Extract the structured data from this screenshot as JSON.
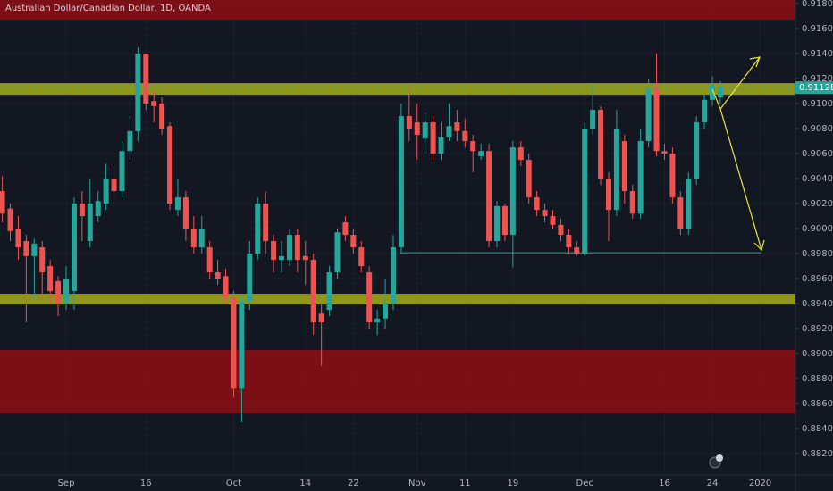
{
  "chart_data": {
    "type": "candlestick",
    "title": "Australian Dollar/Canadian Dollar, 1D, OANDA",
    "categories": [
      null,
      null,
      null,
      null,
      null,
      null,
      null,
      null,
      "Sep",
      null,
      null,
      null,
      null,
      null,
      null,
      null,
      null,
      null,
      "16",
      null,
      null,
      null,
      null,
      null,
      null,
      null,
      null,
      null,
      null,
      "Oct",
      null,
      null,
      null,
      null,
      null,
      null,
      null,
      null,
      "14",
      null,
      null,
      null,
      null,
      null,
      "22",
      null,
      null,
      null,
      null,
      null,
      null,
      null,
      "Nov",
      null,
      null,
      null,
      null,
      null,
      "11",
      null,
      null,
      null,
      null,
      null,
      "19",
      null,
      null,
      null,
      null,
      null,
      null,
      null,
      null,
      "Dec",
      null,
      null,
      null,
      null,
      null,
      null,
      null,
      null,
      null,
      "16",
      null,
      null,
      null,
      null,
      null,
      "24",
      null,
      null,
      null,
      null,
      null,
      "2020",
      null,
      null,
      null,
      null
    ],
    "open": [
      0.903,
      0.9016,
      0.9,
      0.899,
      0.8978,
      0.8985,
      0.897,
      0.8958,
      0.894,
      0.895,
      0.902,
      0.899,
      0.901,
      0.902,
      0.904,
      0.903,
      0.9062,
      0.9078,
      0.914,
      0.9102,
      0.91,
      0.9082,
      0.9015,
      0.9025,
      0.9,
      0.8985,
      0.8985,
      0.8965,
      0.8962,
      0.8945,
      0.8872,
      0.8942,
      0.898,
      0.902,
      0.899,
      0.8975,
      0.8975,
      0.8995,
      0.8978,
      0.8975,
      0.8932,
      0.8935,
      0.8965,
      0.9005,
      0.8995,
      0.8985,
      0.8965,
      0.8925,
      0.8928,
      0.894,
      0.8985,
      0.909,
      0.9085,
      0.9072,
      0.9085,
      0.906,
      0.9073,
      0.9085,
      0.9078,
      0.907,
      0.9058,
      0.9062,
      0.899,
      0.9018,
      0.8995,
      0.9065,
      0.9055,
      0.9025,
      0.9015,
      0.901,
      0.9003,
      0.8995,
      0.8985,
      0.898,
      0.908,
      0.9095,
      0.904,
      0.9015,
      0.907,
      0.903,
      0.9012,
      0.907,
      0.9112,
      0.9062,
      0.906,
      0.9025,
      0.9,
      0.904,
      0.9085,
      0.9103,
      0.9105,
      null,
      null,
      null,
      null,
      null,
      null,
      null,
      null,
      null
    ],
    "high": [
      0.9042,
      0.902,
      0.901,
      0.8995,
      0.8992,
      0.899,
      0.8975,
      0.8962,
      0.897,
      0.9025,
      0.903,
      0.904,
      0.903,
      0.9052,
      0.905,
      0.907,
      0.909,
      0.9145,
      0.914,
      0.9112,
      0.9105,
      0.9085,
      0.904,
      0.903,
      0.901,
      0.901,
      0.899,
      0.8975,
      0.8968,
      0.895,
      0.8946,
      0.899,
      0.9025,
      0.903,
      0.8995,
      0.899,
      0.9,
      0.9,
      0.899,
      0.898,
      0.894,
      0.897,
      0.9,
      0.901,
      0.9,
      0.899,
      0.897,
      0.8935,
      0.896,
      0.8995,
      0.91,
      0.9115,
      0.91,
      0.9092,
      0.909,
      0.9085,
      0.91,
      0.9095,
      0.9088,
      0.9075,
      0.9068,
      0.9068,
      0.9022,
      0.902,
      0.907,
      0.907,
      0.906,
      0.903,
      0.902,
      0.9015,
      0.9008,
      0.9,
      0.899,
      0.9085,
      0.9115,
      0.9098,
      0.9045,
      0.9095,
      0.9075,
      0.9035,
      0.908,
      0.912,
      0.914,
      0.9068,
      0.9065,
      0.903,
      0.9045,
      0.909,
      0.9108,
      0.9122,
      0.9118,
      null,
      null,
      null,
      null,
      null,
      null,
      null,
      null,
      null
    ],
    "low": [
      0.9005,
      0.899,
      0.8975,
      0.8925,
      0.8945,
      0.8945,
      0.894,
      0.893,
      0.8935,
      0.8935,
      0.899,
      0.8985,
      0.9005,
      0.9015,
      0.902,
      0.9025,
      0.9055,
      0.907,
      0.9095,
      0.9085,
      0.9075,
      0.9015,
      0.901,
      0.899,
      0.898,
      0.898,
      0.896,
      0.8955,
      0.894,
      0.8865,
      0.8845,
      0.8935,
      0.8975,
      0.898,
      0.8965,
      0.8965,
      0.897,
      0.8965,
      0.8955,
      0.8915,
      0.889,
      0.893,
      0.896,
      0.899,
      0.898,
      0.8965,
      0.892,
      0.8915,
      0.892,
      0.8935,
      0.898,
      0.907,
      0.9055,
      0.906,
      0.9055,
      0.9055,
      0.907,
      0.907,
      0.9065,
      0.9045,
      0.9055,
      0.8985,
      0.8985,
      0.899,
      0.8969,
      0.905,
      0.902,
      0.901,
      0.9005,
      0.9,
      0.899,
      0.898,
      0.8978,
      0.8978,
      0.9075,
      0.9035,
      0.899,
      0.901,
      0.902,
      0.9008,
      0.9008,
      0.9065,
      0.9058,
      0.9055,
      0.902,
      0.8995,
      0.8995,
      0.9035,
      0.908,
      0.9098,
      0.91,
      null,
      null,
      null,
      null,
      null,
      null,
      null,
      null,
      null
    ],
    "close": [
      0.9012,
      0.8998,
      0.8985,
      0.8978,
      0.8988,
      0.8965,
      0.895,
      0.894,
      0.896,
      0.902,
      0.901,
      0.902,
      0.9022,
      0.904,
      0.903,
      0.9062,
      0.9078,
      0.914,
      0.91,
      0.9098,
      0.908,
      0.902,
      0.9025,
      0.9,
      0.8985,
      0.9,
      0.8965,
      0.896,
      0.8945,
      0.8872,
      0.8942,
      0.898,
      0.902,
      0.899,
      0.8975,
      0.8978,
      0.8995,
      0.8975,
      0.8975,
      0.8925,
      0.8925,
      0.8965,
      0.8997,
      0.8995,
      0.8985,
      0.897,
      0.8925,
      0.8928,
      0.894,
      0.8985,
      0.909,
      0.908,
      0.9075,
      0.9085,
      0.906,
      0.9073,
      0.9082,
      0.9078,
      0.907,
      0.9062,
      0.9062,
      0.899,
      0.9018,
      0.8995,
      0.9065,
      0.9055,
      0.9025,
      0.9015,
      0.901,
      0.9003,
      0.8995,
      0.8985,
      0.898,
      0.908,
      0.9095,
      0.904,
      0.9015,
      0.908,
      0.903,
      0.9012,
      0.907,
      0.9112,
      0.9062,
      0.906,
      0.9025,
      0.9,
      0.904,
      0.9085,
      0.9103,
      0.9115,
      0.91128,
      null,
      null,
      null,
      null,
      null,
      null,
      null,
      null,
      null
    ],
    "up_color": "#26a69a",
    "down_color": "#ef5350",
    "ylim": [
      0.88029,
      0.91829
    ],
    "yticks": [
      {
        "value": 0.918,
        "label": "0.91800"
      },
      {
        "value": 0.916,
        "label": "0.91600"
      },
      {
        "value": 0.914,
        "label": "0.91400"
      },
      {
        "value": 0.912,
        "label": "0.91200"
      },
      {
        "value": 0.91,
        "label": "0.91000"
      },
      {
        "value": 0.908,
        "label": "0.90800"
      },
      {
        "value": 0.906,
        "label": "0.90600"
      },
      {
        "value": 0.904,
        "label": "0.90400"
      },
      {
        "value": 0.902,
        "label": "0.90200"
      },
      {
        "value": 0.9,
        "label": "0.90000"
      },
      {
        "value": 0.898,
        "label": "0.89800"
      },
      {
        "value": 0.896,
        "label": "0.89600"
      },
      {
        "value": 0.894,
        "label": "0.89400"
      },
      {
        "value": 0.892,
        "label": "0.89200"
      },
      {
        "value": 0.89,
        "label": "0.89000"
      },
      {
        "value": 0.888,
        "label": "0.88800"
      },
      {
        "value": 0.886,
        "label": "0.88600"
      },
      {
        "value": 0.884,
        "label": "0.88400"
      },
      {
        "value": 0.882,
        "label": "0.88200"
      }
    ],
    "grid": true,
    "zones": [
      {
        "from": 0.91671,
        "to": 0.91829,
        "color": "#880e14"
      },
      {
        "from": 0.88521,
        "to": 0.89029,
        "color": "#880e14"
      },
      {
        "from": 0.91071,
        "to": 0.91164,
        "color": "#9da41c"
      },
      {
        "from": 0.89393,
        "to": 0.89479,
        "color": "#9da41c"
      }
    ],
    "support_line": {
      "value": 0.89807,
      "color": "#26a69a"
    },
    "last_price": {
      "value": 0.91128,
      "label": "0.91128",
      "color": "#26a69a"
    }
  }
}
